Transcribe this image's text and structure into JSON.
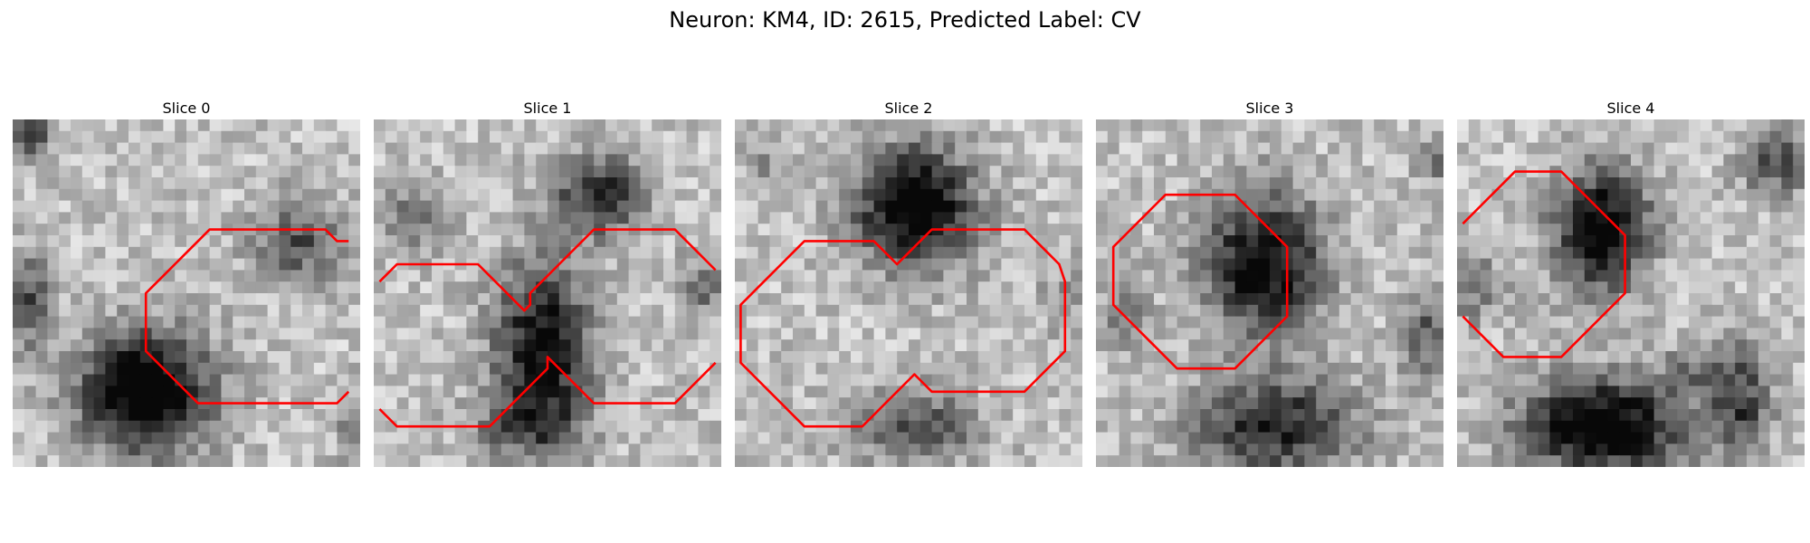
{
  "figure": {
    "title": "Neuron: KM4, ID: 2615, Predicted Label: CV"
  },
  "panels": [
    {
      "title": "Slice 0",
      "contours": [
        [
          [
            28.5,
            10
          ],
          [
            27.5,
            10
          ],
          [
            26.5,
            9
          ],
          [
            25.5,
            9
          ],
          [
            24.5,
            9
          ],
          [
            23.5,
            9
          ],
          [
            22.5,
            9
          ],
          [
            21.5,
            9
          ],
          [
            20.5,
            9
          ],
          [
            19.5,
            9
          ],
          [
            18.5,
            9
          ],
          [
            17.5,
            9
          ],
          [
            16.5,
            9
          ],
          [
            15.5,
            10
          ],
          [
            14.5,
            11
          ],
          [
            13.5,
            12
          ],
          [
            12.5,
            13
          ],
          [
            11.5,
            14
          ],
          [
            11,
            14.5
          ],
          [
            11,
            15.5
          ],
          [
            11,
            16.5
          ],
          [
            11,
            17.5
          ],
          [
            11,
            18.5
          ],
          [
            11,
            19.5
          ],
          [
            11.5,
            20
          ],
          [
            12.5,
            21
          ],
          [
            13.5,
            22
          ],
          [
            14.5,
            23
          ],
          [
            15.5,
            24
          ],
          [
            16.5,
            24
          ],
          [
            17.5,
            24
          ],
          [
            18.5,
            24
          ],
          [
            19.5,
            24
          ],
          [
            20.5,
            24
          ],
          [
            21.5,
            24
          ],
          [
            22.5,
            24
          ],
          [
            23.5,
            24
          ],
          [
            24.5,
            24
          ],
          [
            25.5,
            24
          ],
          [
            26.5,
            24
          ],
          [
            27.5,
            24
          ],
          [
            28.5,
            23
          ]
        ]
      ]
    },
    {
      "title": "Slice 1",
      "contours": [
        [
          [
            0,
            13.5
          ],
          [
            0.5,
            13
          ],
          [
            1.5,
            12
          ],
          [
            2.5,
            12
          ],
          [
            3.5,
            12
          ],
          [
            4.5,
            12
          ],
          [
            5.5,
            12
          ],
          [
            6.5,
            12
          ],
          [
            7.5,
            12
          ],
          [
            8.5,
            12
          ],
          [
            9.5,
            13
          ],
          [
            10.5,
            14
          ],
          [
            11.5,
            15
          ],
          [
            12.5,
            16
          ],
          [
            13,
            15.5
          ],
          [
            13,
            14.5
          ],
          [
            13.5,
            14
          ],
          [
            14.5,
            13
          ],
          [
            15.5,
            12
          ],
          [
            16.5,
            11
          ],
          [
            17.5,
            10
          ],
          [
            18.5,
            9
          ],
          [
            19.5,
            9
          ],
          [
            20.5,
            9
          ],
          [
            21.5,
            9
          ],
          [
            22.5,
            9
          ],
          [
            23.5,
            9
          ],
          [
            24.5,
            9
          ],
          [
            25.5,
            9
          ],
          [
            26.5,
            10
          ],
          [
            27.5,
            11
          ],
          [
            28.5,
            12
          ],
          [
            29,
            12.5
          ]
        ],
        [
          [
            29,
            20.5
          ],
          [
            28.5,
            21
          ],
          [
            27.5,
            22
          ],
          [
            26.5,
            23
          ],
          [
            25.5,
            24
          ],
          [
            24.5,
            24
          ],
          [
            23.5,
            24
          ],
          [
            22.5,
            24
          ],
          [
            21.5,
            24
          ],
          [
            20.5,
            24
          ],
          [
            19.5,
            24
          ],
          [
            18.5,
            24
          ],
          [
            17.5,
            23
          ],
          [
            16.5,
            22
          ],
          [
            15.5,
            21
          ],
          [
            15,
            20.5
          ],
          [
            14.5,
            20
          ],
          [
            14.5,
            21
          ],
          [
            13.5,
            22
          ],
          [
            12.5,
            23
          ],
          [
            11.5,
            24
          ],
          [
            10.5,
            25
          ],
          [
            9.5,
            26
          ],
          [
            8.5,
            26
          ],
          [
            7.5,
            26
          ],
          [
            6.5,
            26
          ],
          [
            5.5,
            26
          ],
          [
            4.5,
            26
          ],
          [
            3.5,
            26
          ],
          [
            2.5,
            26
          ],
          [
            1.5,
            26
          ],
          [
            0.5,
            25
          ],
          [
            0,
            24.5
          ]
        ]
      ]
    },
    {
      "title": "Slice 2",
      "contours": [
        [
          [
            12.5,
            11
          ],
          [
            11.5,
            10
          ],
          [
            10.5,
            10
          ],
          [
            9.5,
            10
          ],
          [
            8.5,
            10
          ],
          [
            7.5,
            10
          ],
          [
            6.5,
            10
          ],
          [
            5.5,
            10
          ],
          [
            4.5,
            11
          ],
          [
            3.5,
            12
          ],
          [
            2.5,
            13
          ],
          [
            1.5,
            14
          ],
          [
            0.5,
            15
          ],
          [
            0,
            15.5
          ],
          [
            0,
            16.5
          ],
          [
            0,
            17.5
          ],
          [
            0,
            18.5
          ],
          [
            0,
            19.5
          ],
          [
            0,
            20.5
          ],
          [
            0.5,
            21
          ],
          [
            1.5,
            22
          ],
          [
            2.5,
            23
          ],
          [
            3.5,
            24
          ],
          [
            4.5,
            25
          ],
          [
            5.5,
            26
          ],
          [
            6.5,
            26
          ],
          [
            7.5,
            26
          ],
          [
            8.5,
            26
          ],
          [
            9.5,
            26
          ],
          [
            10.5,
            26
          ],
          [
            11.5,
            25
          ],
          [
            12.5,
            24
          ],
          [
            13.5,
            23
          ],
          [
            14.5,
            22
          ],
          [
            15,
            21.5
          ],
          [
            15.5,
            22
          ],
          [
            16.5,
            23
          ],
          [
            17.5,
            23
          ],
          [
            18.5,
            23
          ],
          [
            19.5,
            23
          ],
          [
            20.5,
            23
          ],
          [
            21.5,
            23
          ],
          [
            22.5,
            23
          ],
          [
            23.5,
            23
          ],
          [
            24.5,
            23
          ],
          [
            25.5,
            22
          ],
          [
            26.5,
            21
          ],
          [
            27.5,
            20
          ],
          [
            28,
            19.5
          ],
          [
            28,
            18.5
          ],
          [
            28,
            17.5
          ],
          [
            28,
            16.5
          ],
          [
            28,
            15.5
          ],
          [
            28,
            14.5
          ],
          [
            28,
            13.5
          ],
          [
            27.5,
            12
          ],
          [
            26.5,
            11
          ],
          [
            25.5,
            10
          ],
          [
            24.5,
            9
          ],
          [
            23.5,
            9
          ],
          [
            22.5,
            9
          ],
          [
            21.5,
            9
          ],
          [
            20.5,
            9
          ],
          [
            19.5,
            9
          ],
          [
            18.5,
            9
          ],
          [
            17.5,
            9
          ],
          [
            16.5,
            9
          ],
          [
            15.5,
            10
          ],
          [
            14.5,
            11
          ],
          [
            13.5,
            12
          ],
          [
            12.5,
            11
          ]
        ]
      ]
    },
    {
      "title": "Slice 3",
      "contours": [
        [
          [
            6.5,
            6
          ],
          [
            7.5,
            6
          ],
          [
            8.5,
            6
          ],
          [
            9.5,
            6
          ],
          [
            10.5,
            6
          ],
          [
            11.5,
            6
          ],
          [
            12.5,
            7
          ],
          [
            13.5,
            8
          ],
          [
            14.5,
            9
          ],
          [
            15.5,
            10
          ],
          [
            16,
            10.5
          ],
          [
            16,
            11.5
          ],
          [
            16,
            12.5
          ],
          [
            16,
            13.5
          ],
          [
            16,
            14.5
          ],
          [
            16,
            15.5
          ],
          [
            16,
            16.5
          ],
          [
            15.5,
            17
          ],
          [
            14.5,
            18
          ],
          [
            13.5,
            19
          ],
          [
            12.5,
            20
          ],
          [
            11.5,
            21
          ],
          [
            10.5,
            21
          ],
          [
            9.5,
            21
          ],
          [
            8.5,
            21
          ],
          [
            7.5,
            21
          ],
          [
            6.5,
            21
          ],
          [
            5.5,
            20
          ],
          [
            4.5,
            19
          ],
          [
            3.5,
            18
          ],
          [
            2.5,
            17
          ],
          [
            1.5,
            16
          ],
          [
            1,
            15.5
          ],
          [
            1,
            14.5
          ],
          [
            1,
            13.5
          ],
          [
            1,
            12.5
          ],
          [
            1,
            11.5
          ],
          [
            1,
            10.5
          ],
          [
            1.5,
            10
          ],
          [
            2.5,
            9
          ],
          [
            3.5,
            8
          ],
          [
            4.5,
            7
          ],
          [
            5.5,
            6
          ],
          [
            6.5,
            6
          ]
        ]
      ]
    },
    {
      "title": "Slice 4",
      "contours": [
        [
          [
            0,
            8.5
          ],
          [
            0.5,
            8
          ],
          [
            1.5,
            7
          ],
          [
            2.5,
            6
          ],
          [
            3.5,
            5
          ],
          [
            4.5,
            4
          ],
          [
            5.5,
            4
          ],
          [
            6.5,
            4
          ],
          [
            7.5,
            4
          ],
          [
            8.5,
            4
          ],
          [
            9.5,
            5
          ],
          [
            10.5,
            6
          ],
          [
            11.5,
            7
          ],
          [
            12.5,
            8
          ],
          [
            13.5,
            9
          ],
          [
            14,
            9.5
          ],
          [
            14,
            10.5
          ],
          [
            14,
            11.5
          ],
          [
            14,
            12.5
          ],
          [
            14,
            13.5
          ],
          [
            14,
            14.5
          ],
          [
            13.5,
            15
          ],
          [
            12.5,
            16
          ],
          [
            11.5,
            17
          ],
          [
            10.5,
            18
          ],
          [
            9.5,
            19
          ],
          [
            8.5,
            20
          ],
          [
            7.5,
            20
          ],
          [
            6.5,
            20
          ],
          [
            5.5,
            20
          ],
          [
            4.5,
            20
          ],
          [
            3.5,
            20
          ],
          [
            2.5,
            19
          ],
          [
            1.5,
            18
          ],
          [
            0.5,
            17
          ],
          [
            0,
            16.5
          ]
        ]
      ]
    }
  ]
}
